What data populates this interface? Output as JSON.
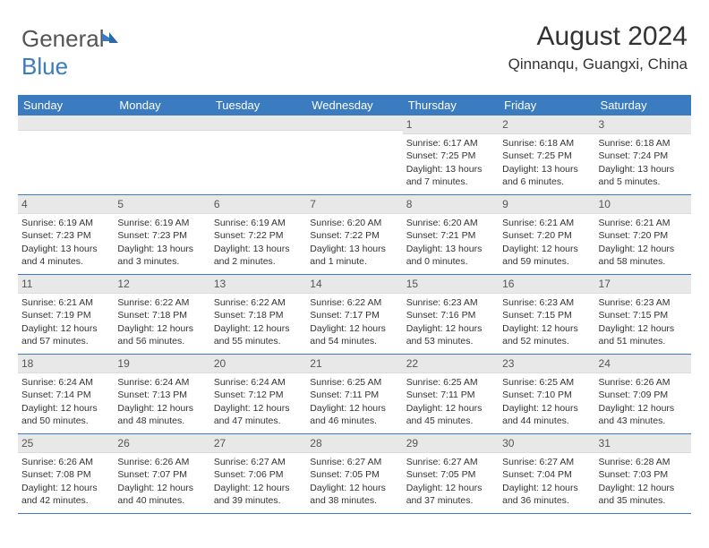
{
  "logo": {
    "text_gray": "General",
    "text_blue": "Blue"
  },
  "title": "August 2024",
  "location": "Qinnanqu, Guangxi, China",
  "colors": {
    "header_bg": "#3b7bbf",
    "header_text": "#ffffff",
    "daynum_bg": "#e8e8e8",
    "body_text": "#333333",
    "border": "#3b7bbf"
  },
  "weekdays": [
    "Sunday",
    "Monday",
    "Tuesday",
    "Wednesday",
    "Thursday",
    "Friday",
    "Saturday"
  ],
  "weeks": [
    [
      {
        "n": "",
        "sr": "",
        "ss": "",
        "dl": ""
      },
      {
        "n": "",
        "sr": "",
        "ss": "",
        "dl": ""
      },
      {
        "n": "",
        "sr": "",
        "ss": "",
        "dl": ""
      },
      {
        "n": "",
        "sr": "",
        "ss": "",
        "dl": ""
      },
      {
        "n": "1",
        "sr": "Sunrise: 6:17 AM",
        "ss": "Sunset: 7:25 PM",
        "dl": "Daylight: 13 hours and 7 minutes."
      },
      {
        "n": "2",
        "sr": "Sunrise: 6:18 AM",
        "ss": "Sunset: 7:25 PM",
        "dl": "Daylight: 13 hours and 6 minutes."
      },
      {
        "n": "3",
        "sr": "Sunrise: 6:18 AM",
        "ss": "Sunset: 7:24 PM",
        "dl": "Daylight: 13 hours and 5 minutes."
      }
    ],
    [
      {
        "n": "4",
        "sr": "Sunrise: 6:19 AM",
        "ss": "Sunset: 7:23 PM",
        "dl": "Daylight: 13 hours and 4 minutes."
      },
      {
        "n": "5",
        "sr": "Sunrise: 6:19 AM",
        "ss": "Sunset: 7:23 PM",
        "dl": "Daylight: 13 hours and 3 minutes."
      },
      {
        "n": "6",
        "sr": "Sunrise: 6:19 AM",
        "ss": "Sunset: 7:22 PM",
        "dl": "Daylight: 13 hours and 2 minutes."
      },
      {
        "n": "7",
        "sr": "Sunrise: 6:20 AM",
        "ss": "Sunset: 7:22 PM",
        "dl": "Daylight: 13 hours and 1 minute."
      },
      {
        "n": "8",
        "sr": "Sunrise: 6:20 AM",
        "ss": "Sunset: 7:21 PM",
        "dl": "Daylight: 13 hours and 0 minutes."
      },
      {
        "n": "9",
        "sr": "Sunrise: 6:21 AM",
        "ss": "Sunset: 7:20 PM",
        "dl": "Daylight: 12 hours and 59 minutes."
      },
      {
        "n": "10",
        "sr": "Sunrise: 6:21 AM",
        "ss": "Sunset: 7:20 PM",
        "dl": "Daylight: 12 hours and 58 minutes."
      }
    ],
    [
      {
        "n": "11",
        "sr": "Sunrise: 6:21 AM",
        "ss": "Sunset: 7:19 PM",
        "dl": "Daylight: 12 hours and 57 minutes."
      },
      {
        "n": "12",
        "sr": "Sunrise: 6:22 AM",
        "ss": "Sunset: 7:18 PM",
        "dl": "Daylight: 12 hours and 56 minutes."
      },
      {
        "n": "13",
        "sr": "Sunrise: 6:22 AM",
        "ss": "Sunset: 7:18 PM",
        "dl": "Daylight: 12 hours and 55 minutes."
      },
      {
        "n": "14",
        "sr": "Sunrise: 6:22 AM",
        "ss": "Sunset: 7:17 PM",
        "dl": "Daylight: 12 hours and 54 minutes."
      },
      {
        "n": "15",
        "sr": "Sunrise: 6:23 AM",
        "ss": "Sunset: 7:16 PM",
        "dl": "Daylight: 12 hours and 53 minutes."
      },
      {
        "n": "16",
        "sr": "Sunrise: 6:23 AM",
        "ss": "Sunset: 7:15 PM",
        "dl": "Daylight: 12 hours and 52 minutes."
      },
      {
        "n": "17",
        "sr": "Sunrise: 6:23 AM",
        "ss": "Sunset: 7:15 PM",
        "dl": "Daylight: 12 hours and 51 minutes."
      }
    ],
    [
      {
        "n": "18",
        "sr": "Sunrise: 6:24 AM",
        "ss": "Sunset: 7:14 PM",
        "dl": "Daylight: 12 hours and 50 minutes."
      },
      {
        "n": "19",
        "sr": "Sunrise: 6:24 AM",
        "ss": "Sunset: 7:13 PM",
        "dl": "Daylight: 12 hours and 48 minutes."
      },
      {
        "n": "20",
        "sr": "Sunrise: 6:24 AM",
        "ss": "Sunset: 7:12 PM",
        "dl": "Daylight: 12 hours and 47 minutes."
      },
      {
        "n": "21",
        "sr": "Sunrise: 6:25 AM",
        "ss": "Sunset: 7:11 PM",
        "dl": "Daylight: 12 hours and 46 minutes."
      },
      {
        "n": "22",
        "sr": "Sunrise: 6:25 AM",
        "ss": "Sunset: 7:11 PM",
        "dl": "Daylight: 12 hours and 45 minutes."
      },
      {
        "n": "23",
        "sr": "Sunrise: 6:25 AM",
        "ss": "Sunset: 7:10 PM",
        "dl": "Daylight: 12 hours and 44 minutes."
      },
      {
        "n": "24",
        "sr": "Sunrise: 6:26 AM",
        "ss": "Sunset: 7:09 PM",
        "dl": "Daylight: 12 hours and 43 minutes."
      }
    ],
    [
      {
        "n": "25",
        "sr": "Sunrise: 6:26 AM",
        "ss": "Sunset: 7:08 PM",
        "dl": "Daylight: 12 hours and 42 minutes."
      },
      {
        "n": "26",
        "sr": "Sunrise: 6:26 AM",
        "ss": "Sunset: 7:07 PM",
        "dl": "Daylight: 12 hours and 40 minutes."
      },
      {
        "n": "27",
        "sr": "Sunrise: 6:27 AM",
        "ss": "Sunset: 7:06 PM",
        "dl": "Daylight: 12 hours and 39 minutes."
      },
      {
        "n": "28",
        "sr": "Sunrise: 6:27 AM",
        "ss": "Sunset: 7:05 PM",
        "dl": "Daylight: 12 hours and 38 minutes."
      },
      {
        "n": "29",
        "sr": "Sunrise: 6:27 AM",
        "ss": "Sunset: 7:05 PM",
        "dl": "Daylight: 12 hours and 37 minutes."
      },
      {
        "n": "30",
        "sr": "Sunrise: 6:27 AM",
        "ss": "Sunset: 7:04 PM",
        "dl": "Daylight: 12 hours and 36 minutes."
      },
      {
        "n": "31",
        "sr": "Sunrise: 6:28 AM",
        "ss": "Sunset: 7:03 PM",
        "dl": "Daylight: 12 hours and 35 minutes."
      }
    ]
  ]
}
